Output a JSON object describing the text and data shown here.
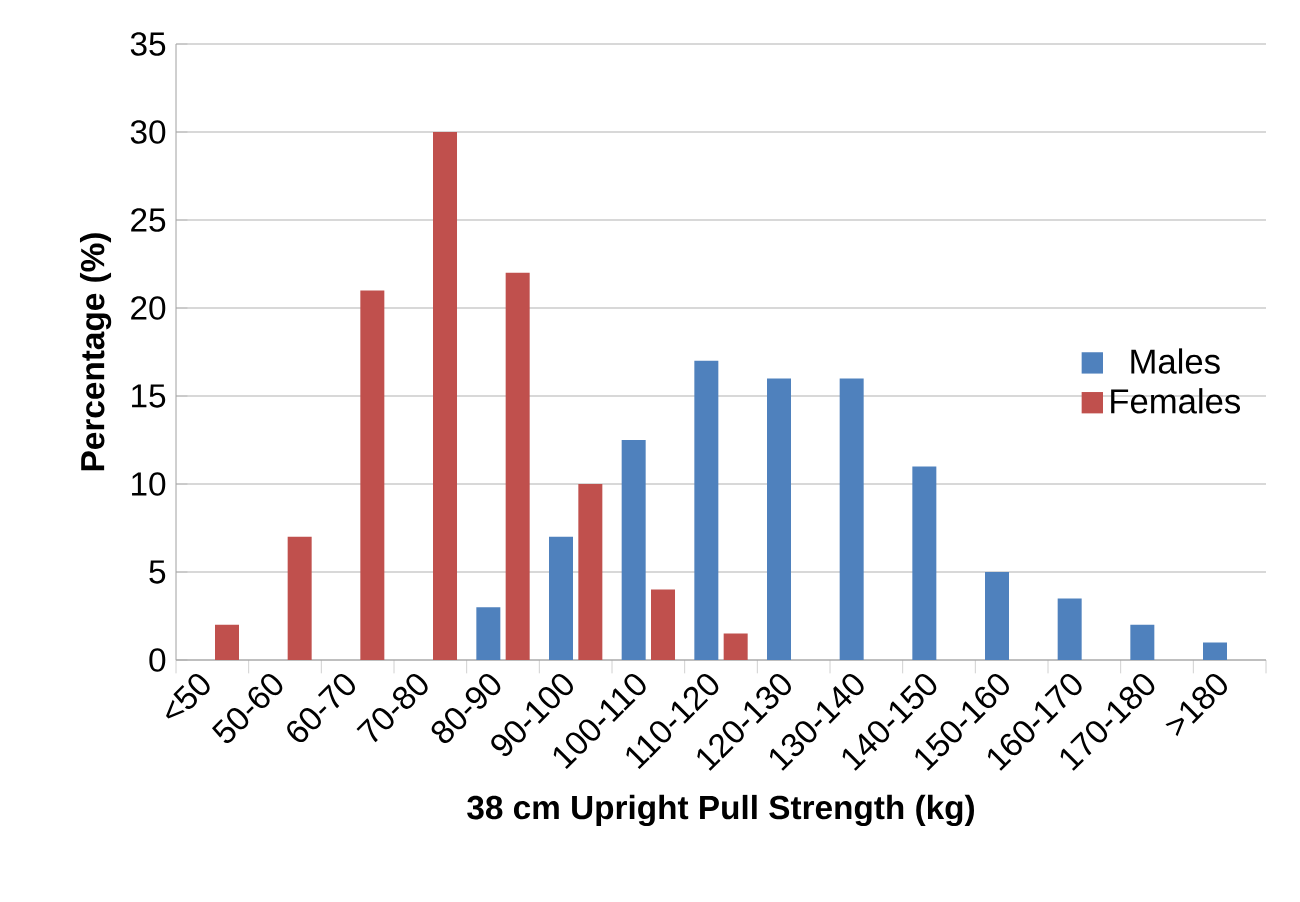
{
  "chart_data": {
    "type": "bar",
    "xlabel": "38 cm Upright Pull Strength (kg)",
    "ylabel": "Percentage (%)",
    "categories": [
      "<50",
      "50-60",
      "60-70",
      "70-80",
      "80-90",
      "90-100",
      "100-110",
      "110-120",
      "120-130",
      "130-140",
      "140-150",
      "150-160",
      "160-170",
      "170-180",
      ">180"
    ],
    "series": [
      {
        "name": "Males",
        "color": "#4f81bd",
        "values": [
          null,
          null,
          null,
          null,
          3,
          7,
          12.5,
          17,
          16,
          16,
          11,
          5,
          3.5,
          2,
          1
        ]
      },
      {
        "name": "Females",
        "color": "#c0504d",
        "values": [
          2,
          7,
          21,
          30,
          22,
          10,
          4,
          1.5,
          null,
          null,
          null,
          null,
          null,
          null,
          null
        ]
      }
    ],
    "ylim": [
      0,
      35
    ],
    "yticks": [
      0,
      5,
      10,
      15,
      20,
      25,
      30,
      35
    ],
    "grid": "y",
    "legend": "right"
  }
}
